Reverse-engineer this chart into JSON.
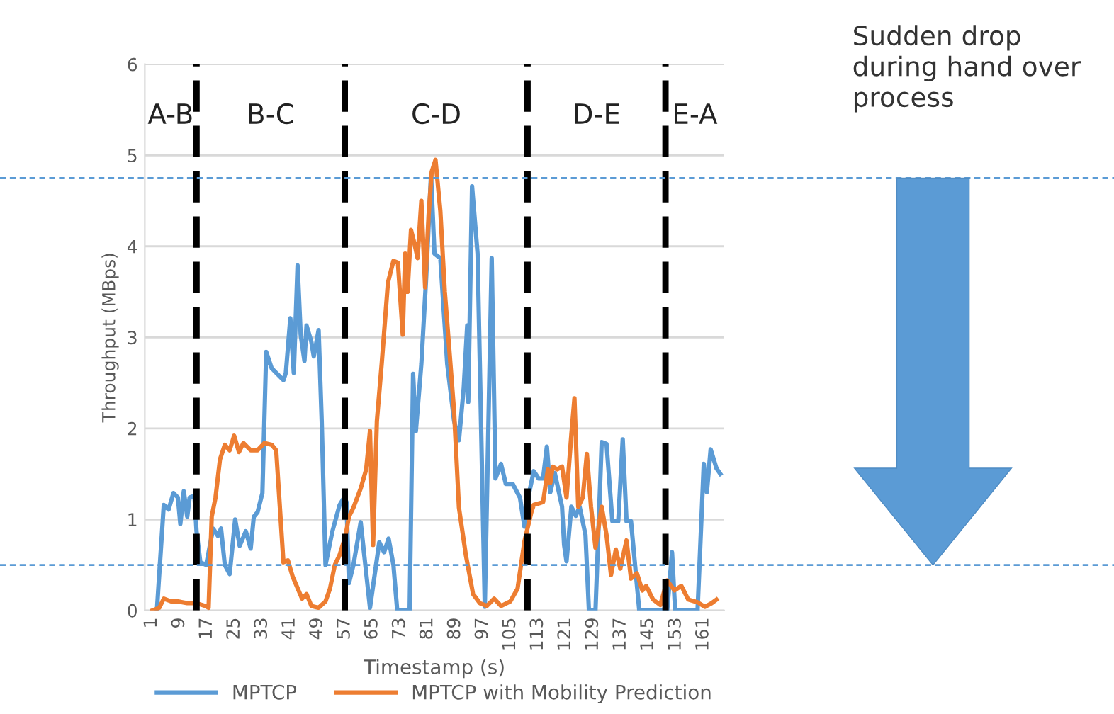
{
  "chart_data": {
    "type": "line",
    "xlabel": "Timestamp (s)",
    "ylabel": "Throughput (MBps)",
    "xlim": [
      -1,
      167
    ],
    "xticks": [
      1,
      9,
      17,
      25,
      33,
      41,
      49,
      57,
      65,
      73,
      81,
      89,
      97,
      105,
      113,
      121,
      129,
      137,
      145,
      153,
      161
    ],
    "ylim": [
      0,
      6
    ],
    "yticks": [
      0,
      1,
      2,
      3,
      4,
      5,
      6
    ],
    "grid": "y",
    "legend": "bottom",
    "marker": "none",
    "line_style": "solid",
    "series": [
      {
        "name": "MPTCP",
        "color": "#5b9bd5",
        "x": [
          2.5,
          4.5,
          5.9,
          7.3,
          8.6,
          9.3,
          10.3,
          11.3,
          12,
          13.4,
          14,
          15.1,
          16.8,
          18.8,
          20.2,
          21.1,
          22.2,
          23.6,
          25.2,
          26.5,
          28.3,
          29.7,
          30.6,
          31.7,
          33.1,
          34.2,
          35.8,
          37.1,
          39.2,
          39.9,
          41.2,
          42.2,
          43.3,
          44.2,
          45.3,
          45.9,
          47.3,
          48,
          49.4,
          50.3,
          51.4,
          53.4,
          55.5,
          56.8,
          57.5,
          58.2,
          59.5,
          61.6,
          64.3,
          67,
          68.4,
          69.7,
          71.1,
          72.2,
          75.8,
          76.8,
          77.6,
          79.2,
          80.6,
          82,
          83,
          84.7,
          86.7,
          88.7,
          90.1,
          91.5,
          92.5,
          92.8,
          93.9,
          95.5,
          97.6,
          99.6,
          100.7,
          102.3,
          103.7,
          105.7,
          107.8,
          109.1,
          110.5,
          111.8,
          113.2,
          114.5,
          115.6,
          116.6,
          117.9,
          120,
          120.6,
          121.3,
          122.7,
          124,
          125.1,
          126.8,
          127.8,
          129.7,
          131.5,
          132.9,
          134.6,
          136.3,
          137.6,
          138.7,
          140,
          142.4,
          148.5,
          150.5,
          151.9,
          152.8,
          159.3,
          161.1,
          162,
          163.1,
          164.8,
          165.9
        ],
        "values": [
          0,
          1.16,
          1.11,
          1.29,
          1.24,
          0.95,
          1.31,
          1.03,
          1.24,
          1.26,
          0.87,
          0.53,
          0.5,
          0.9,
          0.82,
          0.9,
          0.5,
          0.4,
          1.0,
          0.71,
          0.87,
          0.68,
          1.03,
          1.08,
          1.29,
          2.84,
          2.66,
          2.61,
          2.53,
          2.61,
          3.21,
          2.61,
          3.79,
          3.03,
          2.74,
          3.13,
          2.95,
          2.79,
          3.08,
          2.08,
          0.5,
          0.87,
          1.16,
          1.24,
          1.19,
          0.3,
          0.5,
          0.97,
          0.03,
          0.75,
          0.64,
          0.79,
          0.5,
          0,
          0,
          2.6,
          1.97,
          2.71,
          3.66,
          4.79,
          3.92,
          3.87,
          2.71,
          2.08,
          1.87,
          2.45,
          3.13,
          2.29,
          4.66,
          3.92,
          0.04,
          3.87,
          1.45,
          1.61,
          1.39,
          1.39,
          1.24,
          0.92,
          1.3,
          1.53,
          1.45,
          1.45,
          1.8,
          1.3,
          1.51,
          1.14,
          0.72,
          0.54,
          1.14,
          1.04,
          1.14,
          0.83,
          0,
          0,
          1.85,
          1.83,
          0.98,
          0.98,
          1.88,
          0.98,
          0.98,
          0,
          0,
          0,
          0.64,
          0,
          0,
          1.61,
          1.3,
          1.77,
          1.56,
          1.5
        ]
      },
      {
        "name": "MPTCP with Mobility Prediction",
        "color": "#ed7d31",
        "x": [
          1.2,
          3.2,
          4.5,
          6.6,
          8.6,
          11.3,
          14,
          16.5,
          17.5,
          18.4,
          19.5,
          20.8,
          22.2,
          23.6,
          24.9,
          26.3,
          27.6,
          29.7,
          31.7,
          33.7,
          35.8,
          37.1,
          39.2,
          40.5,
          41.9,
          42.8,
          44.6,
          45.9,
          47.3,
          49.4,
          51.4,
          52.7,
          54.1,
          55.5,
          57.2,
          58.2,
          59.5,
          61.6,
          63.2,
          64.3,
          65.2,
          66.3,
          67.7,
          69.5,
          71.1,
          72.4,
          73.8,
          74.5,
          75.2,
          76.2,
          77.2,
          78.1,
          79.2,
          80.3,
          81.3,
          82.2,
          83.3,
          84.7,
          86,
          87.4,
          88.7,
          90.1,
          92.1,
          94.2,
          96.2,
          98.2,
          100.3,
          102.3,
          105,
          107.1,
          109.1,
          111.1,
          111.8,
          114.5,
          115.9,
          116.6,
          117.3,
          118.6,
          120,
          121.3,
          122.7,
          123.6,
          124.7,
          126,
          127.2,
          128.4,
          129.7,
          131.5,
          132.9,
          134.2,
          135.6,
          136.9,
          138.7,
          140,
          141.7,
          143.3,
          144.4,
          146.4,
          148.5,
          150.5,
          152.6,
          154.6,
          156.6,
          159.3,
          161.4,
          163.4,
          164.8
        ],
        "values": [
          0,
          0.03,
          0.13,
          0.1,
          0.1,
          0.08,
          0.08,
          0.05,
          0.03,
          1.03,
          1.24,
          1.66,
          1.82,
          1.76,
          1.92,
          1.74,
          1.84,
          1.76,
          1.76,
          1.84,
          1.82,
          1.76,
          0.53,
          0.55,
          0.37,
          0.29,
          0.13,
          0.18,
          0.05,
          0.03,
          0.1,
          0.24,
          0.5,
          0.61,
          0.82,
          1.03,
          1.13,
          1.34,
          1.55,
          1.97,
          0.72,
          2.08,
          2.71,
          3.6,
          3.84,
          3.82,
          3.03,
          3.92,
          3.5,
          4.18,
          4.03,
          3.87,
          4.5,
          3.55,
          4.34,
          4.82,
          4.95,
          4.39,
          3.5,
          2.82,
          2.18,
          1.13,
          0.61,
          0.18,
          0.08,
          0.05,
          0.13,
          0.05,
          0.1,
          0.24,
          0.76,
          1.08,
          1.16,
          1.19,
          1.55,
          1.4,
          1.58,
          1.55,
          1.58,
          1.24,
          1.93,
          2.33,
          1.14,
          1.24,
          1.72,
          1.14,
          0.69,
          1.14,
          0.83,
          0.39,
          0.67,
          0.46,
          0.77,
          0.35,
          0.41,
          0.22,
          0.27,
          0.12,
          0.06,
          0.33,
          0.22,
          0.27,
          0.12,
          0.09,
          0.04,
          0.08,
          0.12
        ]
      }
    ],
    "ref_lines": [
      {
        "axis": "x",
        "value": 14,
        "color": "#000000",
        "line_style": "dashed"
      },
      {
        "axis": "x",
        "value": 57,
        "color": "#000000",
        "line_style": "dashed"
      },
      {
        "axis": "x",
        "value": 110,
        "color": "#000000",
        "line_style": "dashed"
      },
      {
        "axis": "x",
        "value": 150,
        "color": "#000000",
        "line_style": "dashed"
      },
      {
        "axis": "y",
        "value": 4.75,
        "color": "#5b9bd5",
        "line_style": "dotted"
      },
      {
        "axis": "y",
        "value": 0.5,
        "color": "#5b9bd5",
        "line_style": "dotted"
      }
    ],
    "annotations": [
      "A-B",
      "B-C",
      "C-D",
      "D-E",
      "E-A",
      "Sudden drop during hand over process"
    ]
  }
}
